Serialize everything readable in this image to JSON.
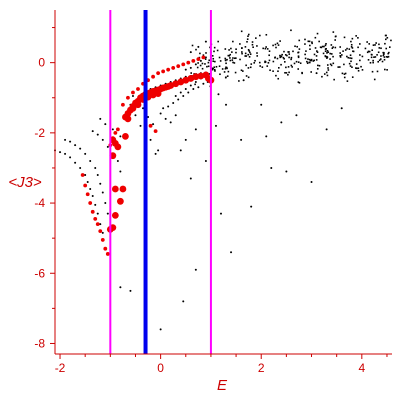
{
  "chart_data": {
    "type": "scatter",
    "title": "",
    "xlabel": "E",
    "ylabel": "<J3>",
    "xlim": [
      -2.1,
      4.6
    ],
    "ylim": [
      -8.3,
      1.5
    ],
    "xticks": [
      -2,
      0,
      2,
      4
    ],
    "yticks": [
      0,
      -2,
      -4,
      -6,
      -8
    ],
    "grid": false,
    "colors": {
      "axis": "#cc0000",
      "black_points": "#000000",
      "red_points": "#ee0000",
      "magenta_lines": "#ff00ff",
      "blue_line": "#0000ee"
    },
    "vertical_lines": [
      {
        "x": -1.0,
        "color": "magenta"
      },
      {
        "x": -0.3,
        "color": "blue"
      },
      {
        "x": 1.0,
        "color": "magenta"
      }
    ],
    "series": [
      {
        "marker": "dot",
        "color": "black",
        "points": [
          [
            -2.1,
            -2.5
          ],
          [
            -2.0,
            -2.55
          ],
          [
            -1.9,
            -2.6
          ],
          [
            -1.8,
            -2.7
          ],
          [
            -1.7,
            -2.85
          ],
          [
            -1.6,
            -3.0
          ],
          [
            -1.5,
            -3.2
          ],
          [
            -1.45,
            -3.4
          ],
          [
            -1.4,
            -3.6
          ],
          [
            -1.35,
            -3.8
          ],
          [
            -1.3,
            -4.05
          ],
          [
            -1.25,
            -4.3
          ],
          [
            -1.2,
            -4.6
          ],
          [
            -1.15,
            -4.85
          ],
          [
            -1.9,
            -2.2
          ],
          [
            -1.8,
            -2.25
          ],
          [
            -1.7,
            -2.35
          ],
          [
            -1.6,
            -2.45
          ],
          [
            -1.5,
            -2.6
          ],
          [
            -1.4,
            -2.8
          ],
          [
            -1.3,
            -3.0
          ],
          [
            -1.25,
            -3.2
          ],
          [
            -1.2,
            -3.45
          ],
          [
            -1.15,
            -3.7
          ],
          [
            -1.1,
            -4.0
          ],
          [
            -1.05,
            -4.3
          ],
          [
            -1.35,
            -1.95
          ],
          [
            -1.25,
            -2.05
          ],
          [
            -1.15,
            -2.2
          ],
          [
            -1.05,
            -2.4
          ],
          [
            -0.95,
            -2.6
          ],
          [
            -0.85,
            -2.8
          ],
          [
            -0.8,
            -3.1
          ],
          [
            -1.2,
            -1.6
          ],
          [
            -1.1,
            -1.75
          ],
          [
            -0.95,
            -1.9
          ],
          [
            -0.8,
            -2.1
          ],
          [
            -0.6,
            -1.2
          ],
          [
            -0.5,
            -1.5
          ],
          [
            -0.4,
            -1.8
          ],
          [
            -0.3,
            -2.0
          ],
          [
            -0.2,
            -2.2
          ],
          [
            -0.1,
            -2.6
          ],
          [
            -0.05,
            -2.5
          ],
          [
            -0.55,
            -0.95
          ],
          [
            -0.45,
            -1.1
          ],
          [
            -0.35,
            -1.3
          ],
          [
            -0.25,
            -1.55
          ],
          [
            -0.15,
            -1.75
          ],
          [
            0.0,
            -1.45
          ],
          [
            0.1,
            -1.6
          ],
          [
            0.2,
            -1.7
          ],
          [
            -0.3,
            -0.85
          ],
          [
            -0.2,
            -0.75
          ],
          [
            -0.1,
            -0.7
          ],
          [
            0.0,
            -0.65
          ],
          [
            0.1,
            -0.6
          ],
          [
            0.2,
            -0.55
          ],
          [
            0.3,
            -0.5
          ],
          [
            0.4,
            -0.45
          ],
          [
            0.5,
            -0.4
          ],
          [
            0.6,
            -0.38
          ],
          [
            0.7,
            -0.35
          ],
          [
            0.8,
            -0.3
          ],
          [
            0.9,
            -0.28
          ],
          [
            0.05,
            -1.3
          ],
          [
            0.15,
            -1.25
          ],
          [
            0.25,
            -1.15
          ],
          [
            0.35,
            -1.05
          ],
          [
            0.45,
            -0.95
          ],
          [
            0.55,
            -0.85
          ],
          [
            0.65,
            -0.75
          ],
          [
            0.75,
            -0.7
          ],
          [
            0.85,
            -0.6
          ],
          [
            0.3,
            -0.95
          ],
          [
            0.4,
            -0.85
          ],
          [
            0.5,
            -0.75
          ],
          [
            0.6,
            -0.65
          ],
          [
            0.7,
            -0.55
          ],
          [
            0.8,
            -0.45
          ],
          [
            0.9,
            -0.35
          ],
          [
            0.3,
            -1.5
          ],
          [
            0.5,
            -2.2
          ],
          [
            0.7,
            -1.9
          ],
          [
            0.9,
            -2.8
          ],
          [
            0.6,
            -3.3
          ],
          [
            0.4,
            -2.5
          ],
          [
            0.5,
            -0.2
          ],
          [
            0.6,
            -0.15
          ],
          [
            0.7,
            -0.05
          ],
          [
            0.8,
            0.05
          ],
          [
            0.9,
            0.15
          ],
          [
            1.0,
            0.3
          ],
          [
            0.6,
            0.3
          ],
          [
            0.75,
            0.45
          ],
          [
            0.9,
            0.6
          ],
          [
            -0.6,
            -6.5
          ],
          [
            -0.3,
            -6.9
          ],
          [
            0.45,
            -6.8
          ],
          [
            0.0,
            -7.6
          ],
          [
            0.7,
            -5.9
          ],
          [
            -0.8,
            -6.4
          ],
          [
            1.1,
            -1.8
          ],
          [
            1.2,
            -4.3
          ],
          [
            1.4,
            -5.4
          ],
          [
            1.6,
            -2.2
          ],
          [
            1.8,
            -4.1
          ],
          [
            1.65,
            -0.5
          ],
          [
            2.0,
            -1.2
          ],
          [
            2.2,
            -3.0
          ],
          [
            2.1,
            -2.1
          ],
          [
            2.5,
            -3.1
          ],
          [
            2.4,
            -1.7
          ],
          [
            3.0,
            -3.4
          ],
          [
            2.7,
            -1.5
          ],
          [
            3.3,
            -1.9
          ],
          [
            3.6,
            -1.3
          ],
          [
            3.1,
            -0.3
          ],
          [
            1.15,
            -0.9
          ],
          [
            1.3,
            -1.2
          ]
        ]
      },
      {
        "marker": "dot",
        "color": "red",
        "points": [
          [
            -1.55,
            -3.2
          ],
          [
            -1.5,
            -3.5
          ],
          [
            -1.45,
            -3.75
          ],
          [
            -1.4,
            -4.0
          ],
          [
            -1.35,
            -4.25
          ],
          [
            -1.3,
            -4.45
          ],
          [
            -1.25,
            -4.6
          ],
          [
            -1.2,
            -4.8
          ],
          [
            -1.15,
            -5.05
          ],
          [
            -1.1,
            -5.3
          ],
          [
            -1.05,
            -5.45
          ],
          [
            -1.0,
            -2.35
          ],
          [
            -0.95,
            -2.15
          ],
          [
            -0.9,
            -2.0
          ],
          [
            -0.85,
            -1.9
          ],
          [
            -0.75,
            -1.2
          ],
          [
            -0.65,
            -1.0
          ],
          [
            -0.55,
            -0.85
          ],
          [
            -0.45,
            -0.75
          ],
          [
            -0.35,
            -0.6
          ],
          [
            -0.25,
            -0.5
          ],
          [
            -0.15,
            -0.4
          ],
          [
            -0.05,
            -0.3
          ],
          [
            0.05,
            -0.25
          ],
          [
            0.15,
            -0.2
          ],
          [
            0.25,
            -0.15
          ],
          [
            0.35,
            -0.1
          ],
          [
            0.45,
            -0.05
          ],
          [
            0.55,
            0.0
          ],
          [
            0.65,
            0.05
          ],
          [
            0.75,
            0.1
          ],
          [
            0.85,
            0.15
          ],
          [
            -0.2,
            -1.8
          ],
          [
            -0.1,
            -1.95
          ]
        ]
      },
      {
        "marker": "large-dot",
        "color": "red",
        "points": [
          [
            -1.0,
            -4.75
          ],
          [
            -0.95,
            -4.7
          ],
          [
            -0.9,
            -4.35
          ],
          [
            -0.8,
            -3.95
          ],
          [
            -0.75,
            -3.6
          ],
          [
            -0.9,
            -3.6
          ],
          [
            -0.95,
            -2.2
          ],
          [
            -0.9,
            -2.3
          ],
          [
            -0.85,
            -2.4
          ],
          [
            -0.95,
            -2.65
          ],
          [
            -0.7,
            -2.1
          ],
          [
            -0.7,
            -1.55
          ],
          [
            -0.65,
            -1.45
          ],
          [
            -0.6,
            -1.35
          ],
          [
            -0.55,
            -1.25
          ],
          [
            -0.5,
            -1.15
          ],
          [
            -0.45,
            -1.1
          ],
          [
            -0.4,
            -1.0
          ],
          [
            -0.35,
            -0.95
          ],
          [
            -0.3,
            -0.9
          ],
          [
            -0.25,
            -0.88
          ],
          [
            -0.2,
            -0.85
          ],
          [
            -0.15,
            -0.82
          ],
          [
            -0.1,
            -0.8
          ],
          [
            -0.05,
            -0.78
          ],
          [
            0.0,
            -0.75
          ],
          [
            0.05,
            -0.72
          ],
          [
            0.1,
            -0.7
          ],
          [
            0.15,
            -0.68
          ],
          [
            -0.65,
            -1.6
          ],
          [
            -0.55,
            -1.3
          ],
          [
            -0.45,
            -1.2
          ],
          [
            -0.35,
            -1.05
          ],
          [
            -0.25,
            -0.98
          ],
          [
            -0.15,
            -0.92
          ],
          [
            -0.05,
            -0.88
          ],
          [
            0.2,
            -0.65
          ],
          [
            0.3,
            -0.6
          ],
          [
            0.4,
            -0.55
          ],
          [
            0.5,
            -0.5
          ],
          [
            0.6,
            -0.45
          ],
          [
            0.7,
            -0.4
          ],
          [
            0.8,
            -0.38
          ],
          [
            0.9,
            -0.35
          ],
          [
            0.95,
            -0.45
          ],
          [
            1.0,
            -0.5
          ]
        ]
      }
    ],
    "scattered_cloud": {
      "color": "black",
      "x_range": [
        0.6,
        4.6
      ],
      "center_y": 0.2,
      "spread_y": 0.45,
      "count": 380
    }
  }
}
